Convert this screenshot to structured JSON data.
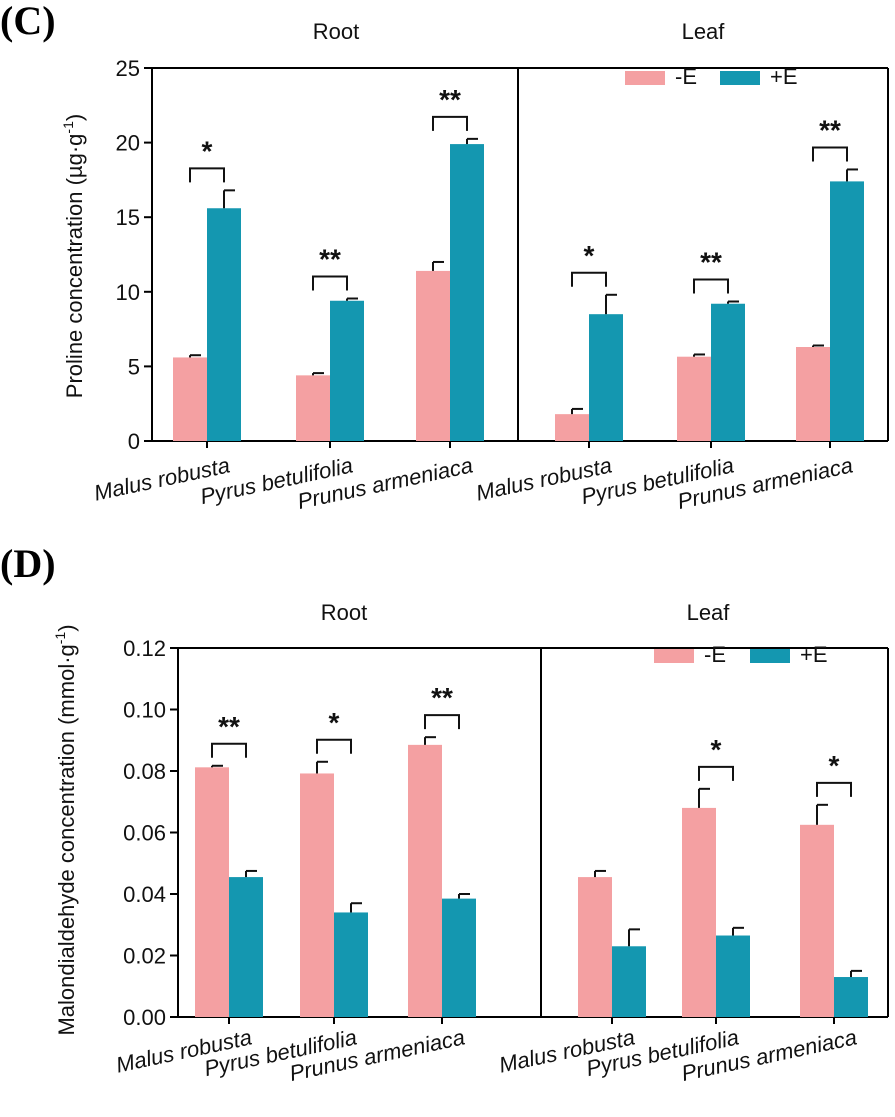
{
  "colors": {
    "minus_e": "#f4a0a2",
    "plus_e": "#1497b0",
    "axis": "#000000"
  },
  "chart_data": [
    {
      "panel": "(C)",
      "type": "bar",
      "ylabel": "Proline concentration (µg·g",
      "ylabel_sup": "-1",
      "ylabel_close": ")",
      "ylim": [
        0,
        25
      ],
      "yticks": [
        "0",
        "5",
        "10",
        "15",
        "20",
        "25"
      ],
      "ytick_values": [
        0,
        5,
        10,
        15,
        20,
        25
      ],
      "legend": [
        "-E",
        "+E"
      ],
      "groups": [
        {
          "title": "Root",
          "categories": [
            "Malus robusta",
            "Pyrus betulifolia",
            "Prunus armeniaca"
          ],
          "series": [
            {
              "name": "-E",
              "values": [
                5.6,
                4.4,
                11.4
              ],
              "errors": [
                0.15,
                0.15,
                0.6
              ]
            },
            {
              "name": "+E",
              "values": [
                15.6,
                9.4,
                19.9
              ],
              "errors": [
                1.2,
                0.15,
                0.35
              ]
            }
          ],
          "significance": [
            "*",
            "**",
            "**"
          ]
        },
        {
          "title": "Leaf",
          "categories": [
            "Malus robusta",
            "Pyrus betulifolia",
            "Prunus armeniaca"
          ],
          "series": [
            {
              "name": "-E",
              "values": [
                1.8,
                5.65,
                6.3
              ],
              "errors": [
                0.35,
                0.15,
                0.1
              ]
            },
            {
              "name": "+E",
              "values": [
                8.5,
                9.2,
                17.4
              ],
              "errors": [
                1.3,
                0.15,
                0.8
              ]
            }
          ],
          "significance": [
            "*",
            "**",
            "**"
          ]
        }
      ]
    },
    {
      "panel": "(D)",
      "type": "bar",
      "ylabel": "Malondialdehyde concentration (mmol·g",
      "ylabel_sup": "-1",
      "ylabel_close": ")",
      "ylim": [
        0,
        0.12
      ],
      "yticks": [
        "0.00",
        "0.02",
        "0.04",
        "0.06",
        "0.08",
        "0.10",
        "0.12"
      ],
      "ytick_values": [
        0,
        0.02,
        0.04,
        0.06,
        0.08,
        0.1,
        0.12
      ],
      "legend": [
        "-E",
        "+E"
      ],
      "groups": [
        {
          "title": "Root",
          "categories": [
            "Malus robusta",
            "Pyrus betulifolia",
            "Prunus armeniaca"
          ],
          "series": [
            {
              "name": "-E",
              "values": [
                0.0812,
                0.0792,
                0.0885
              ],
              "errors": [
                0.0005,
                0.0038,
                0.0025
              ]
            },
            {
              "name": "+E",
              "values": [
                0.0455,
                0.034,
                0.0385
              ],
              "errors": [
                0.002,
                0.003,
                0.0015
              ]
            }
          ],
          "significance": [
            "**",
            "*",
            "**"
          ]
        },
        {
          "title": "Leaf",
          "categories": [
            "Malus robusta",
            "Pyrus betulifolia",
            "Prunus armeniaca"
          ],
          "series": [
            {
              "name": "-E",
              "values": [
                0.0455,
                0.068,
                0.0625
              ],
              "errors": [
                0.002,
                0.0062,
                0.0065
              ]
            },
            {
              "name": "+E",
              "values": [
                0.023,
                0.0265,
                0.013
              ],
              "errors": [
                0.0055,
                0.0025,
                0.002
              ]
            }
          ],
          "significance": [
            "",
            "*",
            "*"
          ]
        }
      ]
    }
  ]
}
